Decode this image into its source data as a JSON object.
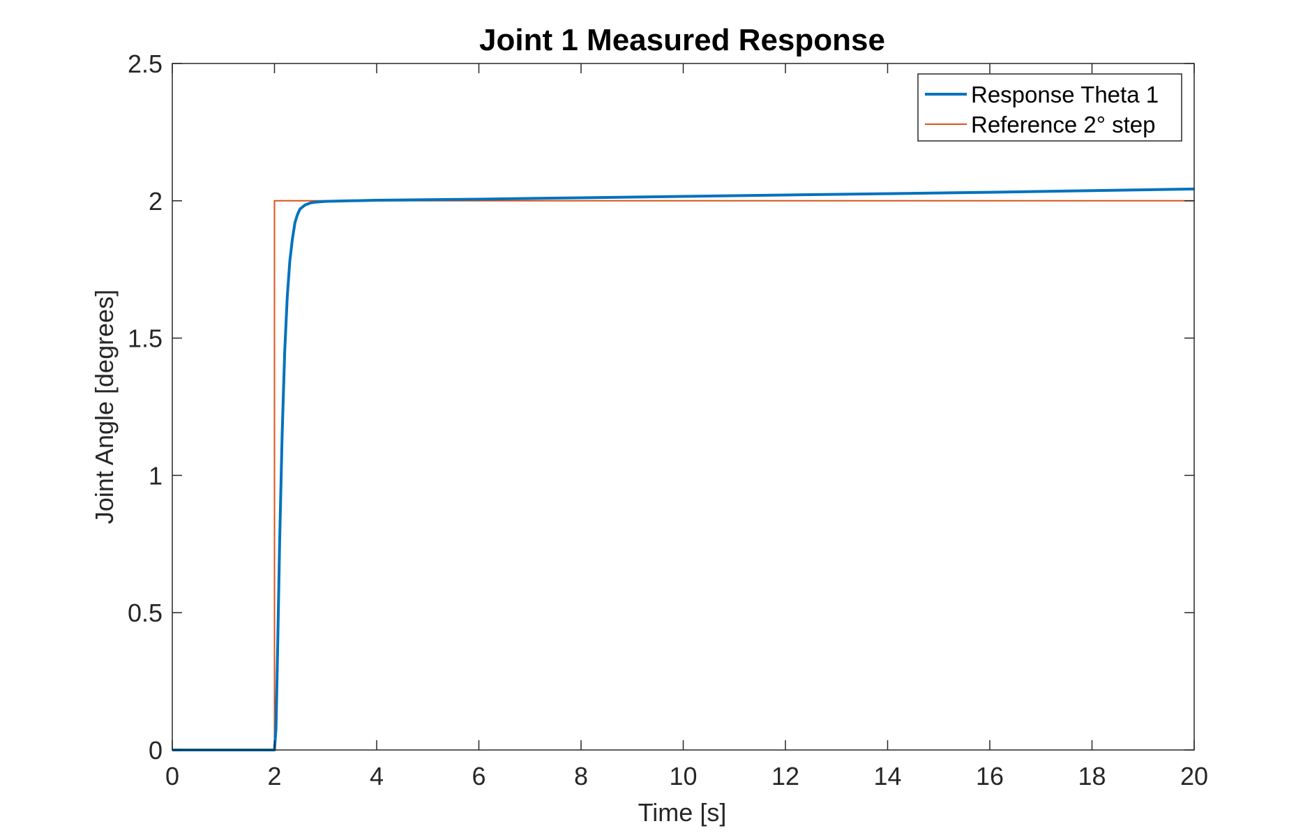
{
  "chart_data": {
    "type": "line",
    "title": "Joint 1 Measured Response",
    "xlabel": "Time [s]",
    "ylabel": "Joint Angle [degrees]",
    "xlim": [
      0,
      20
    ],
    "ylim": [
      0,
      2.5
    ],
    "xticks": [
      0,
      2,
      4,
      6,
      8,
      10,
      12,
      14,
      16,
      18,
      20
    ],
    "yticks": [
      0,
      0.5,
      1,
      1.5,
      2,
      2.5
    ],
    "xtick_labels": [
      "0",
      "2",
      "4",
      "6",
      "8",
      "10",
      "12",
      "14",
      "16",
      "18",
      "20"
    ],
    "ytick_labels": [
      "0",
      "0.5",
      "1",
      "1.5",
      "2",
      "2.5"
    ],
    "grid": false,
    "legend_position": "top-right",
    "series": [
      {
        "name": "Response Theta 1",
        "color": "#0072BD",
        "x": [
          0,
          2.0,
          2.03,
          2.06,
          2.1,
          2.15,
          2.2,
          2.25,
          2.3,
          2.35,
          2.4,
          2.45,
          2.5,
          2.6,
          2.7,
          2.8,
          3.0,
          4,
          6,
          8,
          10,
          12,
          14,
          16,
          18,
          20
        ],
        "y": [
          0,
          0,
          0.08,
          0.35,
          0.75,
          1.15,
          1.45,
          1.65,
          1.78,
          1.86,
          1.92,
          1.95,
          1.97,
          1.985,
          1.992,
          1.995,
          1.998,
          2.002,
          2.006,
          2.011,
          2.016,
          2.021,
          2.026,
          2.031,
          2.037,
          2.043
        ]
      },
      {
        "name": "Reference 2° step",
        "color": "#D95319",
        "x": [
          0,
          2,
          2,
          20
        ],
        "y": [
          0,
          0,
          2,
          2
        ]
      }
    ]
  }
}
